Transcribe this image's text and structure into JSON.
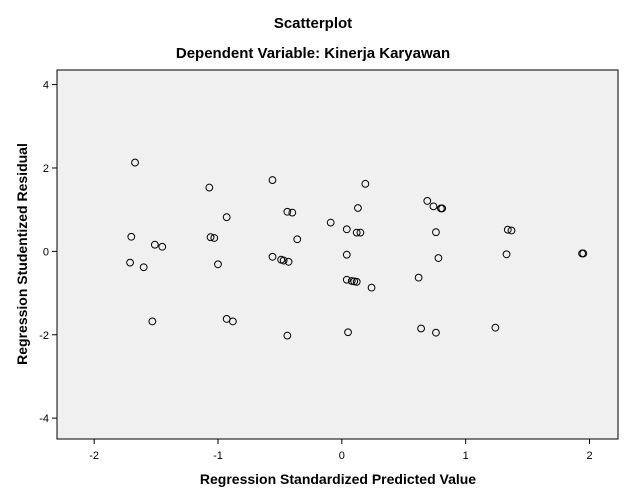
{
  "chart_data": {
    "type": "scatter",
    "title": "Scatterplot",
    "subtitle": "Dependent Variable: Kinerja Karyawan",
    "xlabel": "Regression Standardized Predicted Value",
    "ylabel": "Regression Studentized Residual",
    "xlim": [
      -2.3,
      2.23
    ],
    "ylim": [
      -4.5,
      4.35
    ],
    "x_ticks": [
      -2,
      -1,
      0,
      1,
      2
    ],
    "y_ticks": [
      -4,
      -2,
      0,
      2,
      4
    ],
    "x_tick_labels": [
      "-2",
      "-1",
      "0",
      "1",
      "2"
    ],
    "y_tick_labels": [
      "-4",
      "-2",
      "0",
      "2",
      "4"
    ],
    "grid": false,
    "legend": "none",
    "colors": {
      "plot_background": "#f0f0f0",
      "page_background": "#ffffff",
      "marker_stroke": "#000000",
      "axis": "#000000"
    },
    "points": [
      {
        "x": -1.67,
        "y": 2.13
      },
      {
        "x": -1.07,
        "y": 1.53
      },
      {
        "x": -0.56,
        "y": 1.71
      },
      {
        "x": 0.19,
        "y": 1.62
      },
      {
        "x": -0.93,
        "y": 0.82
      },
      {
        "x": -0.44,
        "y": 0.95
      },
      {
        "x": -0.4,
        "y": 0.93
      },
      {
        "x": 0.13,
        "y": 1.04
      },
      {
        "x": 0.69,
        "y": 1.21
      },
      {
        "x": 0.74,
        "y": 1.08
      },
      {
        "x": 0.8,
        "y": 1.03
      },
      {
        "x": 0.81,
        "y": 1.03
      },
      {
        "x": -0.09,
        "y": 0.69
      },
      {
        "x": 0.04,
        "y": 0.53
      },
      {
        "x": 0.12,
        "y": 0.45
      },
      {
        "x": 0.15,
        "y": 0.45
      },
      {
        "x": 0.76,
        "y": 0.46
      },
      {
        "x": 1.34,
        "y": 0.52
      },
      {
        "x": 1.37,
        "y": 0.5
      },
      {
        "x": -1.7,
        "y": 0.35
      },
      {
        "x": -1.51,
        "y": 0.16
      },
      {
        "x": -1.45,
        "y": 0.11
      },
      {
        "x": -1.06,
        "y": 0.34
      },
      {
        "x": -1.03,
        "y": 0.32
      },
      {
        "x": -0.36,
        "y": 0.29
      },
      {
        "x": 1.94,
        "y": -0.05
      },
      {
        "x": 1.95,
        "y": -0.05
      },
      {
        "x": 1.33,
        "y": -0.07
      },
      {
        "x": 0.04,
        "y": -0.08
      },
      {
        "x": 0.78,
        "y": -0.16
      },
      {
        "x": -1.71,
        "y": -0.27
      },
      {
        "x": -1.6,
        "y": -0.38
      },
      {
        "x": -1.0,
        "y": -0.31
      },
      {
        "x": -0.56,
        "y": -0.13
      },
      {
        "x": -0.49,
        "y": -0.2
      },
      {
        "x": -0.47,
        "y": -0.22
      },
      {
        "x": -0.43,
        "y": -0.25
      },
      {
        "x": 0.04,
        "y": -0.68
      },
      {
        "x": 0.08,
        "y": -0.71
      },
      {
        "x": 0.1,
        "y": -0.72
      },
      {
        "x": 0.12,
        "y": -0.73
      },
      {
        "x": 0.24,
        "y": -0.87
      },
      {
        "x": 0.62,
        "y": -0.63
      },
      {
        "x": -1.53,
        "y": -1.68
      },
      {
        "x": -0.93,
        "y": -1.62
      },
      {
        "x": -0.88,
        "y": -1.68
      },
      {
        "x": -0.44,
        "y": -2.02
      },
      {
        "x": 0.05,
        "y": -1.94
      },
      {
        "x": 0.64,
        "y": -1.85
      },
      {
        "x": 0.76,
        "y": -1.95
      },
      {
        "x": 1.24,
        "y": -1.83
      }
    ]
  }
}
